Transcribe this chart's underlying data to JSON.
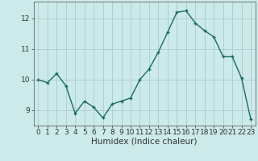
{
  "x": [
    0,
    1,
    2,
    3,
    4,
    5,
    6,
    7,
    8,
    9,
    10,
    11,
    12,
    13,
    14,
    15,
    16,
    17,
    18,
    19,
    20,
    21,
    22,
    23
  ],
  "y": [
    10.0,
    9.9,
    10.2,
    9.8,
    8.9,
    9.3,
    9.1,
    8.75,
    9.2,
    9.3,
    9.4,
    10.0,
    10.35,
    10.9,
    11.55,
    12.2,
    12.25,
    11.85,
    11.6,
    11.4,
    10.75,
    10.75,
    10.05,
    8.7
  ],
  "line_color": "#1a6b5e",
  "marker": "+",
  "marker_size": 3,
  "marker_lw": 1.0,
  "line_width": 1.0,
  "bg_color": "#cceaea",
  "grid_color": "#aacccc",
  "xlabel": "Humidex (Indice chaleur)",
  "xlim": [
    -0.5,
    23.5
  ],
  "ylim": [
    8.5,
    12.55
  ],
  "yticks": [
    9,
    10,
    11,
    12
  ],
  "xticks": [
    0,
    1,
    2,
    3,
    4,
    5,
    6,
    7,
    8,
    9,
    10,
    11,
    12,
    13,
    14,
    15,
    16,
    17,
    18,
    19,
    20,
    21,
    22,
    23
  ],
  "tick_fontsize": 6.5,
  "xlabel_fontsize": 7.5,
  "spine_color": "#666666",
  "tick_color": "#333333"
}
